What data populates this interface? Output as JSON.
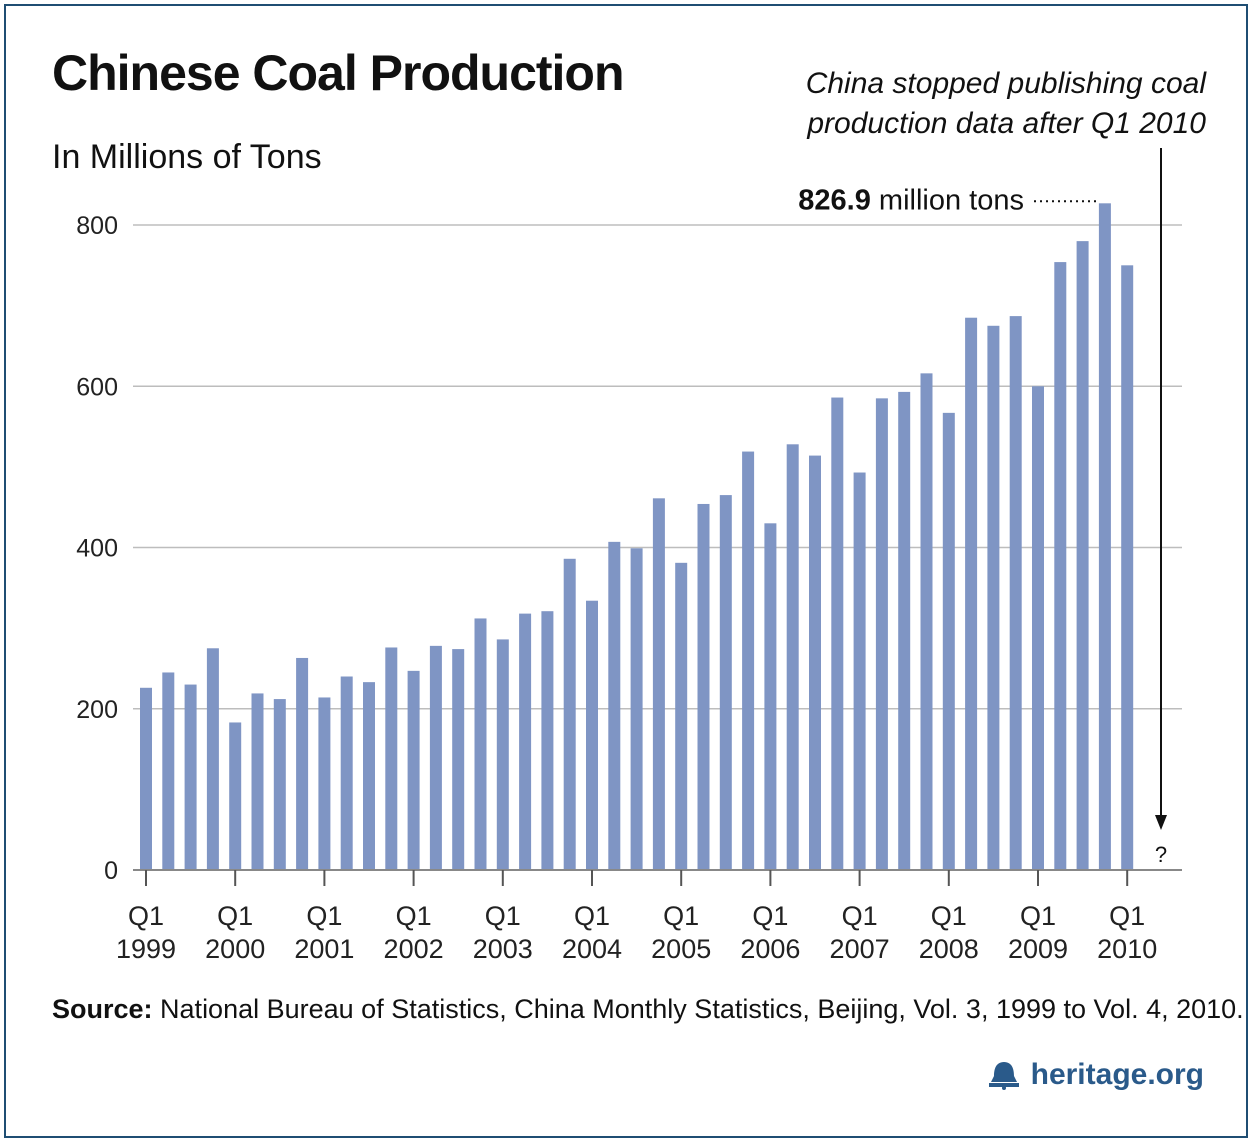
{
  "title": "Chinese Coal Production",
  "subtitle": "In Millions of Tons",
  "annotation_note_line1": "China stopped publishing coal",
  "annotation_note_line2": "production data after Q1 2010",
  "peak_label": "826.9 million tons",
  "question_mark": "?",
  "source_label": "Source:",
  "source_text": "National Bureau of Statistics, China Monthly Statistics, Beijing, Vol. 3, 1999 to Vol. 4, 2010.",
  "brand": "heritage.org",
  "colors": {
    "bar": "#7f95c4",
    "grid": "#bdbdbd",
    "axis": "#333333",
    "brand": "#2a5a8a"
  },
  "chart_data": {
    "type": "bar",
    "title": "Chinese Coal Production",
    "ylabel": "In Millions of Tons",
    "ylim": [
      0,
      800
    ],
    "yticks": [
      0,
      200,
      400,
      600,
      800
    ],
    "grid": true,
    "x_tick_top": [
      "Q1",
      "Q1",
      "Q1",
      "Q1",
      "Q1",
      "Q1",
      "Q1",
      "Q1",
      "Q1",
      "Q1",
      "Q1",
      "Q1"
    ],
    "x_tick_bottom": [
      "1999",
      "2000",
      "2001",
      "2002",
      "2003",
      "2004",
      "2005",
      "2006",
      "2007",
      "2008",
      "2009",
      "2010"
    ],
    "categories": [
      "1999 Q1",
      "1999 Q2",
      "1999 Q3",
      "1999 Q4",
      "2000 Q1",
      "2000 Q2",
      "2000 Q3",
      "2000 Q4",
      "2001 Q1",
      "2001 Q2",
      "2001 Q3",
      "2001 Q4",
      "2002 Q1",
      "2002 Q2",
      "2002 Q3",
      "2002 Q4",
      "2003 Q1",
      "2003 Q2",
      "2003 Q3",
      "2003 Q4",
      "2004 Q1",
      "2004 Q2",
      "2004 Q3",
      "2004 Q4",
      "2005 Q1",
      "2005 Q2",
      "2005 Q3",
      "2005 Q4",
      "2006 Q1",
      "2006 Q2",
      "2006 Q3",
      "2006 Q4",
      "2007 Q1",
      "2007 Q2",
      "2007 Q3",
      "2007 Q4",
      "2008 Q1",
      "2008 Q2",
      "2008 Q3",
      "2008 Q4",
      "2009 Q1",
      "2009 Q2",
      "2009 Q3",
      "2009 Q4",
      "2010 Q1"
    ],
    "values": [
      226,
      245,
      230,
      275,
      183,
      219,
      212,
      263,
      214,
      240,
      233,
      276,
      247,
      278,
      274,
      312,
      286,
      318,
      321,
      386,
      334,
      407,
      399,
      461,
      381,
      454,
      465,
      519,
      430,
      528,
      514,
      586,
      493,
      585,
      593,
      616,
      567,
      685,
      675,
      687,
      600,
      754,
      780,
      826.9,
      750
    ]
  }
}
